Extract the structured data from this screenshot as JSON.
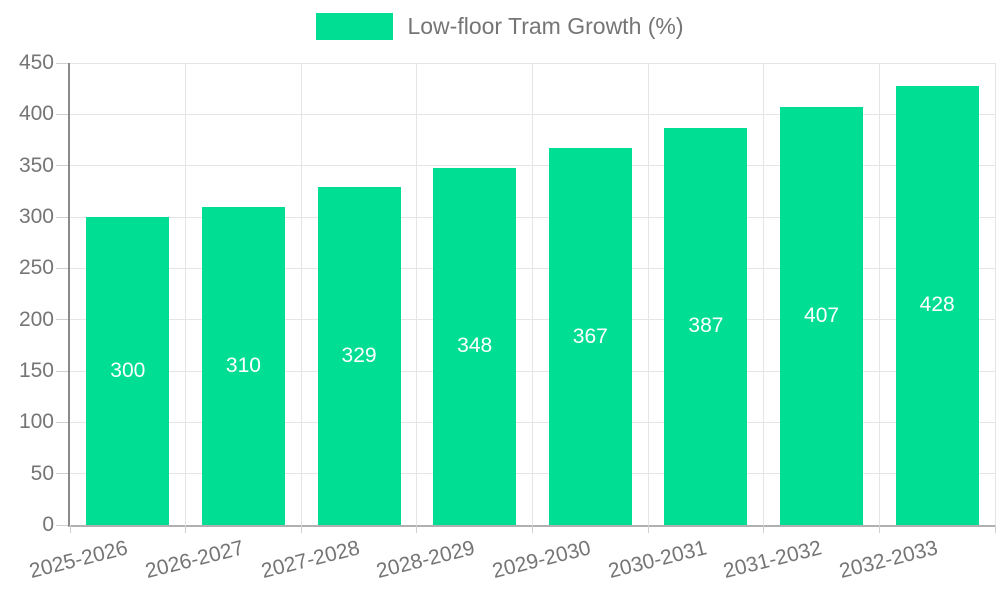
{
  "legend": {
    "items": [
      {
        "label": "Low-floor Tram Growth (%)",
        "color": "#00DE94"
      }
    ]
  },
  "chart_data": {
    "type": "bar",
    "title": "Low-floor Tram Growth (%)",
    "categories": [
      "2025-2026",
      "2026-2027",
      "2027-2028",
      "2028-2029",
      "2029-2030",
      "2030-2031",
      "2031-2032",
      "2032-2033"
    ],
    "series": [
      {
        "name": "Low-floor Tram Growth (%)",
        "values": [
          300,
          310,
          329,
          348,
          367,
          387,
          407,
          428
        ],
        "color": "#00DE94"
      }
    ],
    "xlabel": "",
    "ylabel": "",
    "ylim": [
      0,
      450
    ],
    "yticks": [
      0,
      50,
      100,
      150,
      200,
      250,
      300,
      350,
      400,
      450
    ],
    "grid": true,
    "legend_position": "top",
    "show_value_labels": true,
    "value_label_color": "#FFFFFF",
    "x_tick_rotation_deg": -14
  },
  "colors": {
    "background": "#FFFFFF",
    "bar": "#00DE94",
    "axis_text": "#757575",
    "value_text": "#FFFFFF",
    "grid_line": "#E5E5E5",
    "y_axis_line": "#8A8A8A",
    "x_axis_line": "#B0B0B0",
    "tick_mark": "#D0D0D0"
  }
}
